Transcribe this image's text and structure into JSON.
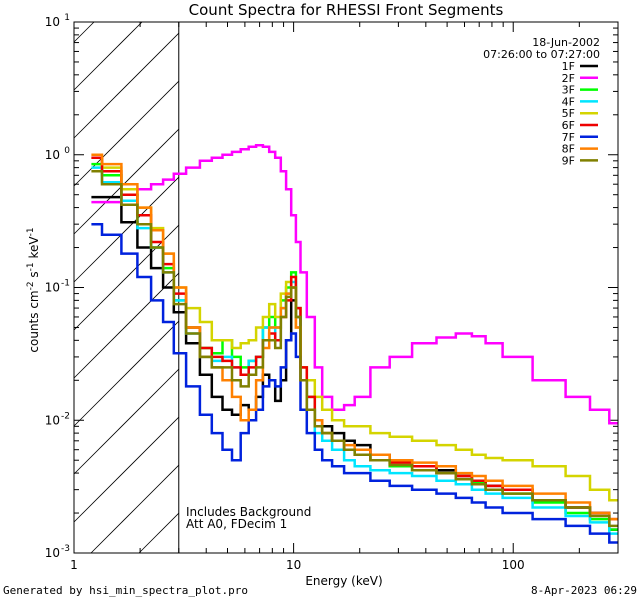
{
  "chart_data": {
    "type": "line",
    "title": "Count Spectra for RHESSI Front Segments",
    "xlabel": "Energy (keV)",
    "ylabel_parts": [
      "counts cm",
      "-2",
      " s",
      "-1",
      " keV",
      "-1"
    ],
    "xscale": "log",
    "yscale": "log",
    "xlim": [
      1,
      300
    ],
    "ylim": [
      0.001,
      10
    ],
    "x_ticks": [
      {
        "value": 1,
        "label": "1"
      },
      {
        "value": 10,
        "label": "10"
      },
      {
        "value": 100,
        "label": "100"
      }
    ],
    "y_ticks": [
      {
        "value": 0.001,
        "base": "10",
        "exp": "-3"
      },
      {
        "value": 0.01,
        "base": "10",
        "exp": "-2"
      },
      {
        "value": 0.1,
        "base": "10",
        "exp": "-1"
      },
      {
        "value": 1,
        "base": "10",
        "exp": "0"
      },
      {
        "value": 10,
        "base": "10",
        "exp": "1"
      }
    ],
    "shaded_region_keV": [
      1,
      3
    ],
    "legend": {
      "position": "top-right",
      "date": "18-Jun-2002",
      "time_range": "07:26:00 to 07:27:00"
    },
    "annotations": [
      "Includes Background",
      "Att A0, FDecim 1"
    ],
    "footer_left": "Generated by hsi_min_spectra_plot.pro",
    "footer_right": "8-Apr-2023 06:29",
    "series": [
      {
        "name": "1F",
        "color": "#000000",
        "x": [
          1.2,
          1.5,
          1.8,
          2.1,
          2.4,
          2.7,
          3.0,
          3.5,
          4.0,
          4.5,
          5.0,
          5.5,
          6.0,
          6.5,
          7.0,
          7.5,
          8.0,
          8.5,
          9.0,
          9.5,
          10.0,
          10.5,
          11.0,
          12.0,
          13.0,
          14.0,
          16.0,
          18.0,
          20.0,
          25.0,
          30.0,
          40.0,
          50.0,
          60.0,
          70.0,
          80.0,
          100.0,
          150.0,
          200.0,
          250.0,
          300.0
        ],
        "y": [
          0.48,
          0.48,
          0.31,
          0.2,
          0.14,
          0.1,
          0.065,
          0.038,
          0.022,
          0.015,
          0.012,
          0.011,
          0.013,
          0.012,
          0.015,
          0.022,
          0.02,
          0.014,
          0.02,
          0.04,
          0.08,
          0.06,
          0.02,
          0.012,
          0.01,
          0.009,
          0.008,
          0.007,
          0.0065,
          0.0055,
          0.005,
          0.0045,
          0.0042,
          0.0038,
          0.0035,
          0.0032,
          0.003,
          0.0025,
          0.0022,
          0.002,
          0.0015
        ]
      },
      {
        "name": "2F",
        "color": "#ff00ff",
        "x": [
          1.2,
          1.5,
          1.8,
          2.1,
          2.4,
          2.7,
          3.0,
          3.5,
          4.0,
          4.5,
          5.0,
          5.5,
          6.0,
          6.5,
          7.0,
          7.5,
          8.0,
          8.5,
          9.0,
          9.5,
          10.0,
          10.5,
          11.0,
          12.0,
          13.0,
          14.0,
          16.0,
          18.0,
          20.0,
          25.0,
          30.0,
          40.0,
          50.0,
          60.0,
          70.0,
          80.0,
          100.0,
          150.0,
          200.0,
          250.0,
          300.0
        ],
        "y": [
          0.44,
          0.44,
          0.5,
          0.55,
          0.6,
          0.65,
          0.72,
          0.8,
          0.9,
          0.95,
          1.0,
          1.05,
          1.1,
          1.15,
          1.18,
          1.15,
          1.05,
          0.95,
          0.75,
          0.55,
          0.35,
          0.22,
          0.13,
          0.06,
          0.025,
          0.015,
          0.012,
          0.013,
          0.015,
          0.025,
          0.03,
          0.038,
          0.042,
          0.045,
          0.043,
          0.038,
          0.03,
          0.02,
          0.015,
          0.012,
          0.0095
        ]
      },
      {
        "name": "3F",
        "color": "#00ff00",
        "x": [
          1.2,
          1.5,
          1.8,
          2.1,
          2.4,
          2.7,
          3.0,
          3.5,
          4.0,
          4.5,
          5.0,
          5.5,
          6.0,
          6.5,
          7.0,
          7.5,
          8.0,
          8.5,
          9.0,
          9.5,
          10.0,
          10.5,
          11.0,
          12.0,
          13.0,
          14.0,
          16.0,
          18.0,
          20.0,
          25.0,
          30.0,
          40.0,
          50.0,
          60.0,
          70.0,
          80.0,
          100.0,
          150.0,
          200.0,
          250.0,
          300.0
        ],
        "y": [
          0.85,
          0.7,
          0.5,
          0.3,
          0.2,
          0.14,
          0.08,
          0.05,
          0.035,
          0.032,
          0.04,
          0.03,
          0.025,
          0.028,
          0.03,
          0.05,
          0.06,
          0.05,
          0.08,
          0.1,
          0.13,
          0.07,
          0.025,
          0.015,
          0.01,
          0.008,
          0.007,
          0.006,
          0.0055,
          0.005,
          0.0045,
          0.0042,
          0.004,
          0.0036,
          0.0034,
          0.003,
          0.0028,
          0.0024,
          0.002,
          0.0018,
          0.0015
        ]
      },
      {
        "name": "4F",
        "color": "#00e5ff",
        "x": [
          1.2,
          1.5,
          1.8,
          2.1,
          2.4,
          2.7,
          3.0,
          3.5,
          4.0,
          4.5,
          5.0,
          5.5,
          6.0,
          6.5,
          7.0,
          7.5,
          8.0,
          8.5,
          9.0,
          9.5,
          10.0,
          10.5,
          11.0,
          12.0,
          13.0,
          14.0,
          16.0,
          18.0,
          20.0,
          25.0,
          30.0,
          40.0,
          50.0,
          60.0,
          70.0,
          80.0,
          100.0,
          150.0,
          200.0,
          250.0,
          300.0
        ],
        "y": [
          0.8,
          0.62,
          0.45,
          0.28,
          0.2,
          0.13,
          0.08,
          0.045,
          0.03,
          0.028,
          0.03,
          0.025,
          0.022,
          0.028,
          0.03,
          0.05,
          0.05,
          0.04,
          0.07,
          0.09,
          0.11,
          0.06,
          0.02,
          0.012,
          0.008,
          0.007,
          0.006,
          0.005,
          0.0045,
          0.0042,
          0.004,
          0.0038,
          0.0035,
          0.0033,
          0.003,
          0.0028,
          0.0026,
          0.0022,
          0.0019,
          0.0017,
          0.0014
        ]
      },
      {
        "name": "5F",
        "color": "#d4d400",
        "x": [
          1.2,
          1.5,
          1.8,
          2.1,
          2.4,
          2.7,
          3.0,
          3.5,
          4.0,
          4.5,
          5.0,
          5.5,
          6.0,
          6.5,
          7.0,
          7.5,
          8.0,
          8.5,
          9.0,
          9.5,
          10.0,
          10.5,
          11.0,
          12.0,
          13.0,
          14.0,
          16.0,
          18.0,
          20.0,
          25.0,
          30.0,
          40.0,
          50.0,
          60.0,
          70.0,
          80.0,
          100.0,
          150.0,
          200.0,
          250.0,
          300.0
        ],
        "y": [
          0.95,
          0.8,
          0.55,
          0.4,
          0.28,
          0.18,
          0.1,
          0.07,
          0.055,
          0.04,
          0.04,
          0.035,
          0.038,
          0.04,
          0.05,
          0.06,
          0.075,
          0.06,
          0.09,
          0.11,
          0.1,
          0.05,
          0.025,
          0.02,
          0.015,
          0.012,
          0.01,
          0.009,
          0.009,
          0.008,
          0.0075,
          0.007,
          0.0065,
          0.006,
          0.0055,
          0.0052,
          0.005,
          0.0045,
          0.0038,
          0.003,
          0.0025
        ]
      },
      {
        "name": "6F",
        "color": "#ee0000",
        "x": [
          1.2,
          1.5,
          1.8,
          2.1,
          2.4,
          2.7,
          3.0,
          3.5,
          4.0,
          4.5,
          5.0,
          5.5,
          6.0,
          6.5,
          7.0,
          7.5,
          8.0,
          8.5,
          9.0,
          9.5,
          10.0,
          10.5,
          11.0,
          12.0,
          13.0,
          14.0,
          16.0,
          18.0,
          20.0,
          25.0,
          30.0,
          40.0,
          50.0,
          60.0,
          70.0,
          80.0,
          100.0,
          150.0,
          200.0,
          250.0,
          300.0
        ],
        "y": [
          0.95,
          0.75,
          0.5,
          0.35,
          0.22,
          0.15,
          0.09,
          0.05,
          0.035,
          0.03,
          0.028,
          0.025,
          0.022,
          0.025,
          0.03,
          0.04,
          0.045,
          0.04,
          0.06,
          0.08,
          0.12,
          0.07,
          0.025,
          0.015,
          0.01,
          0.008,
          0.007,
          0.006,
          0.006,
          0.005,
          0.0048,
          0.0045,
          0.004,
          0.0038,
          0.0035,
          0.0032,
          0.003,
          0.0025,
          0.0022,
          0.002,
          0.0018
        ]
      },
      {
        "name": "7F",
        "color": "#0022dd",
        "x": [
          1.2,
          1.5,
          1.8,
          2.1,
          2.4,
          2.7,
          3.0,
          3.5,
          4.0,
          4.5,
          5.0,
          5.5,
          6.0,
          6.5,
          7.0,
          7.5,
          8.0,
          8.5,
          9.0,
          9.5,
          10.0,
          10.5,
          11.0,
          12.0,
          13.0,
          14.0,
          16.0,
          18.0,
          20.0,
          25.0,
          30.0,
          40.0,
          50.0,
          60.0,
          70.0,
          80.0,
          100.0,
          150.0,
          200.0,
          250.0,
          300.0
        ],
        "y": [
          0.3,
          0.25,
          0.18,
          0.12,
          0.08,
          0.055,
          0.032,
          0.018,
          0.011,
          0.008,
          0.006,
          0.005,
          0.008,
          0.01,
          0.012,
          0.018,
          0.02,
          0.018,
          0.025,
          0.04,
          0.045,
          0.03,
          0.012,
          0.008,
          0.006,
          0.005,
          0.0045,
          0.004,
          0.004,
          0.0035,
          0.0032,
          0.003,
          0.0028,
          0.0026,
          0.0024,
          0.0022,
          0.002,
          0.0018,
          0.0016,
          0.0014,
          0.0012
        ]
      },
      {
        "name": "8F",
        "color": "#ff8000",
        "x": [
          1.2,
          1.5,
          1.8,
          2.1,
          2.4,
          2.7,
          3.0,
          3.5,
          4.0,
          4.5,
          5.0,
          5.5,
          6.0,
          6.5,
          7.0,
          7.5,
          8.0,
          8.5,
          9.0,
          9.5,
          10.0,
          10.5,
          11.0,
          12.0,
          13.0,
          14.0,
          16.0,
          18.0,
          20.0,
          25.0,
          30.0,
          40.0,
          50.0,
          60.0,
          70.0,
          80.0,
          100.0,
          150.0,
          200.0,
          250.0,
          300.0
        ],
        "y": [
          1.0,
          0.85,
          0.6,
          0.4,
          0.27,
          0.18,
          0.1,
          0.05,
          0.03,
          0.025,
          0.02,
          0.015,
          0.01,
          0.012,
          0.02,
          0.035,
          0.05,
          0.05,
          0.07,
          0.09,
          0.1,
          0.05,
          0.02,
          0.012,
          0.01,
          0.008,
          0.007,
          0.0065,
          0.006,
          0.0055,
          0.005,
          0.0048,
          0.0045,
          0.004,
          0.0038,
          0.0035,
          0.0032,
          0.0028,
          0.0024,
          0.002,
          0.0018
        ]
      },
      {
        "name": "9F",
        "color": "#808000",
        "x": [
          1.2,
          1.5,
          1.8,
          2.1,
          2.4,
          2.7,
          3.0,
          3.5,
          4.0,
          4.5,
          5.0,
          5.5,
          6.0,
          6.5,
          7.0,
          7.5,
          8.0,
          8.5,
          9.0,
          9.5,
          10.0,
          10.5,
          11.0,
          12.0,
          13.0,
          14.0,
          16.0,
          18.0,
          20.0,
          25.0,
          30.0,
          40.0,
          50.0,
          60.0,
          70.0,
          80.0,
          100.0,
          150.0,
          200.0,
          250.0,
          300.0
        ],
        "y": [
          0.75,
          0.6,
          0.42,
          0.3,
          0.2,
          0.13,
          0.075,
          0.045,
          0.03,
          0.025,
          0.025,
          0.02,
          0.018,
          0.022,
          0.025,
          0.04,
          0.04,
          0.035,
          0.06,
          0.085,
          0.1,
          0.06,
          0.02,
          0.012,
          0.009,
          0.008,
          0.007,
          0.006,
          0.0055,
          0.005,
          0.0046,
          0.0042,
          0.004,
          0.0036,
          0.0033,
          0.003,
          0.0028,
          0.0025,
          0.0022,
          0.0019,
          0.0016
        ]
      }
    ]
  }
}
